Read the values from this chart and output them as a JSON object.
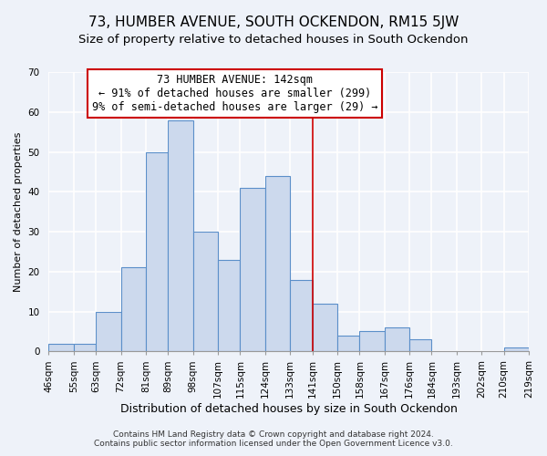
{
  "title": "73, HUMBER AVENUE, SOUTH OCKENDON, RM15 5JW",
  "subtitle": "Size of property relative to detached houses in South Ockendon",
  "xlabel": "Distribution of detached houses by size in South Ockendon",
  "ylabel": "Number of detached properties",
  "bin_edges": [
    46,
    55,
    63,
    72,
    81,
    89,
    98,
    107,
    115,
    124,
    133,
    141,
    150,
    158,
    167,
    176,
    184,
    193,
    202,
    210,
    219
  ],
  "bar_heights": [
    2,
    2,
    10,
    21,
    50,
    58,
    30,
    23,
    41,
    44,
    18,
    12,
    4,
    5,
    6,
    3,
    0,
    0,
    0,
    1
  ],
  "tick_labels": [
    "46sqm",
    "55sqm",
    "63sqm",
    "72sqm",
    "81sqm",
    "89sqm",
    "98sqm",
    "107sqm",
    "115sqm",
    "124sqm",
    "133sqm",
    "141sqm",
    "150sqm",
    "158sqm",
    "167sqm",
    "176sqm",
    "184sqm",
    "193sqm",
    "202sqm",
    "210sqm",
    "219sqm"
  ],
  "bar_face_color": "#ccd9ed",
  "bar_edge_color": "#5b8fc9",
  "vline_x": 141,
  "vline_color": "#cc0000",
  "annotation_title": "73 HUMBER AVENUE: 142sqm",
  "annotation_line1": "← 91% of detached houses are smaller (299)",
  "annotation_line2": "9% of semi-detached houses are larger (29) →",
  "annotation_box_color": "#ffffff",
  "annotation_box_edge": "#cc0000",
  "ylim": [
    0,
    70
  ],
  "yticks": [
    0,
    10,
    20,
    30,
    40,
    50,
    60,
    70
  ],
  "footnote1": "Contains HM Land Registry data © Crown copyright and database right 2024.",
  "footnote2": "Contains public sector information licensed under the Open Government Licence v3.0.",
  "bg_color": "#eef2f9",
  "grid_color": "#ffffff",
  "title_fontsize": 11,
  "subtitle_fontsize": 9.5,
  "xlabel_fontsize": 9,
  "ylabel_fontsize": 8,
  "tick_fontsize": 7.5,
  "annotation_fontsize": 8.5,
  "footnote_fontsize": 6.5
}
